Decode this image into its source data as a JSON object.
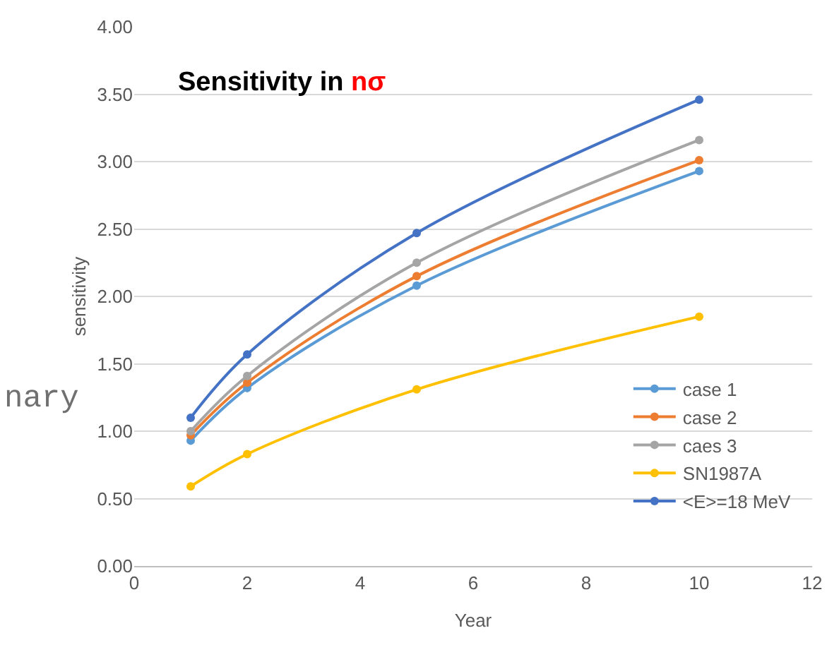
{
  "chart_data": {
    "type": "line",
    "title": "Sensitivity in nσ",
    "xlabel": "Year",
    "ylabel": "sensitivity",
    "annotations": [
      "nary"
    ],
    "x": [
      1,
      2,
      5,
      10
    ],
    "series": [
      {
        "name": "case 1",
        "color": "#5b9bd5",
        "values": [
          0.93,
          1.32,
          2.08,
          2.93
        ]
      },
      {
        "name": "case 2",
        "color": "#ed7d31",
        "values": [
          0.97,
          1.36,
          2.15,
          3.01
        ]
      },
      {
        "name": "caes 3",
        "color": "#a5a5a5",
        "values": [
          1.0,
          1.41,
          2.25,
          3.16
        ]
      },
      {
        "name": "SN1987A",
        "color": "#ffc000",
        "values": [
          0.59,
          0.83,
          1.31,
          1.85
        ]
      },
      {
        "name": "<E>=18 MeV",
        "color": "#4472c4",
        "values": [
          1.1,
          1.57,
          2.47,
          3.46
        ]
      }
    ],
    "xlim": [
      0,
      12
    ],
    "xticks": [
      0,
      2,
      4,
      6,
      8,
      10,
      12
    ],
    "ylim": [
      0,
      4
    ],
    "yticks": [
      {
        "value": 0,
        "label": "0.00"
      },
      {
        "value": 0.5,
        "label": "0.50"
      },
      {
        "value": 1,
        "label": "1.00"
      },
      {
        "value": 1.5,
        "label": "1.50"
      },
      {
        "value": 2,
        "label": "2.00"
      },
      {
        "value": 2.5,
        "label": "2.50"
      },
      {
        "value": 3,
        "label": "3.00"
      },
      {
        "value": 3.5,
        "label": "3.50"
      },
      {
        "value": 4,
        "label": "4.00"
      }
    ],
    "grid": "y",
    "legend": "bottom right",
    "marker": "circle",
    "line_style": "solid"
  }
}
